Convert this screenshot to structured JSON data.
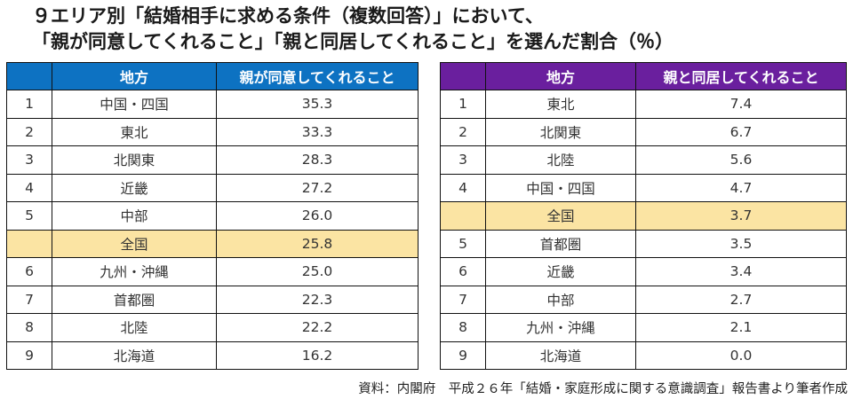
{
  "title": {
    "line1": "９エリア別「結婚相手に求める条件（複数回答）」において、",
    "line2": "「親が同意してくれること」「親と同居してくれること」を選んだ割合（％）"
  },
  "colors": {
    "left_header": "#0d72c2",
    "right_header": "#6a1f9e",
    "highlight_row": "#fbe4a3"
  },
  "chart_data": [
    {
      "type": "table",
      "columns": [
        "",
        "地方",
        "親が同意してくれること"
      ],
      "rows": [
        {
          "rank": "1",
          "region": "中国・四国",
          "value": "35.3"
        },
        {
          "rank": "2",
          "region": "東北",
          "value": "33.3"
        },
        {
          "rank": "3",
          "region": "北関東",
          "value": "28.3"
        },
        {
          "rank": "4",
          "region": "近畿",
          "value": "27.2"
        },
        {
          "rank": "5",
          "region": "中部",
          "value": "26.0"
        },
        {
          "rank": "",
          "region": "全国",
          "value": "25.8",
          "highlight": true
        },
        {
          "rank": "6",
          "region": "九州・沖縄",
          "value": "25.0"
        },
        {
          "rank": "7",
          "region": "首都圏",
          "value": "22.3"
        },
        {
          "rank": "8",
          "region": "北陸",
          "value": "22.2"
        },
        {
          "rank": "9",
          "region": "北海道",
          "value": "16.2"
        }
      ]
    },
    {
      "type": "table",
      "columns": [
        "",
        "地方",
        "親と同居してくれること"
      ],
      "rows": [
        {
          "rank": "1",
          "region": "東北",
          "value": "7.4"
        },
        {
          "rank": "2",
          "region": "北関東",
          "value": "6.7"
        },
        {
          "rank": "3",
          "region": "北陸",
          "value": "5.6"
        },
        {
          "rank": "4",
          "region": "中国・四国",
          "value": "4.7"
        },
        {
          "rank": "",
          "region": "全国",
          "value": "3.7",
          "highlight": true
        },
        {
          "rank": "5",
          "region": "首都圏",
          "value": "3.5"
        },
        {
          "rank": "6",
          "region": "近畿",
          "value": "3.4"
        },
        {
          "rank": "7",
          "region": "中部",
          "value": "2.7"
        },
        {
          "rank": "8",
          "region": "九州・沖縄",
          "value": "2.1"
        },
        {
          "rank": "9",
          "region": "北海道",
          "value": "0.0"
        }
      ]
    }
  ],
  "source": "資料：内閣府　平成２６年「結婚・家庭形成に関する意識調査」報告書より筆者作成"
}
